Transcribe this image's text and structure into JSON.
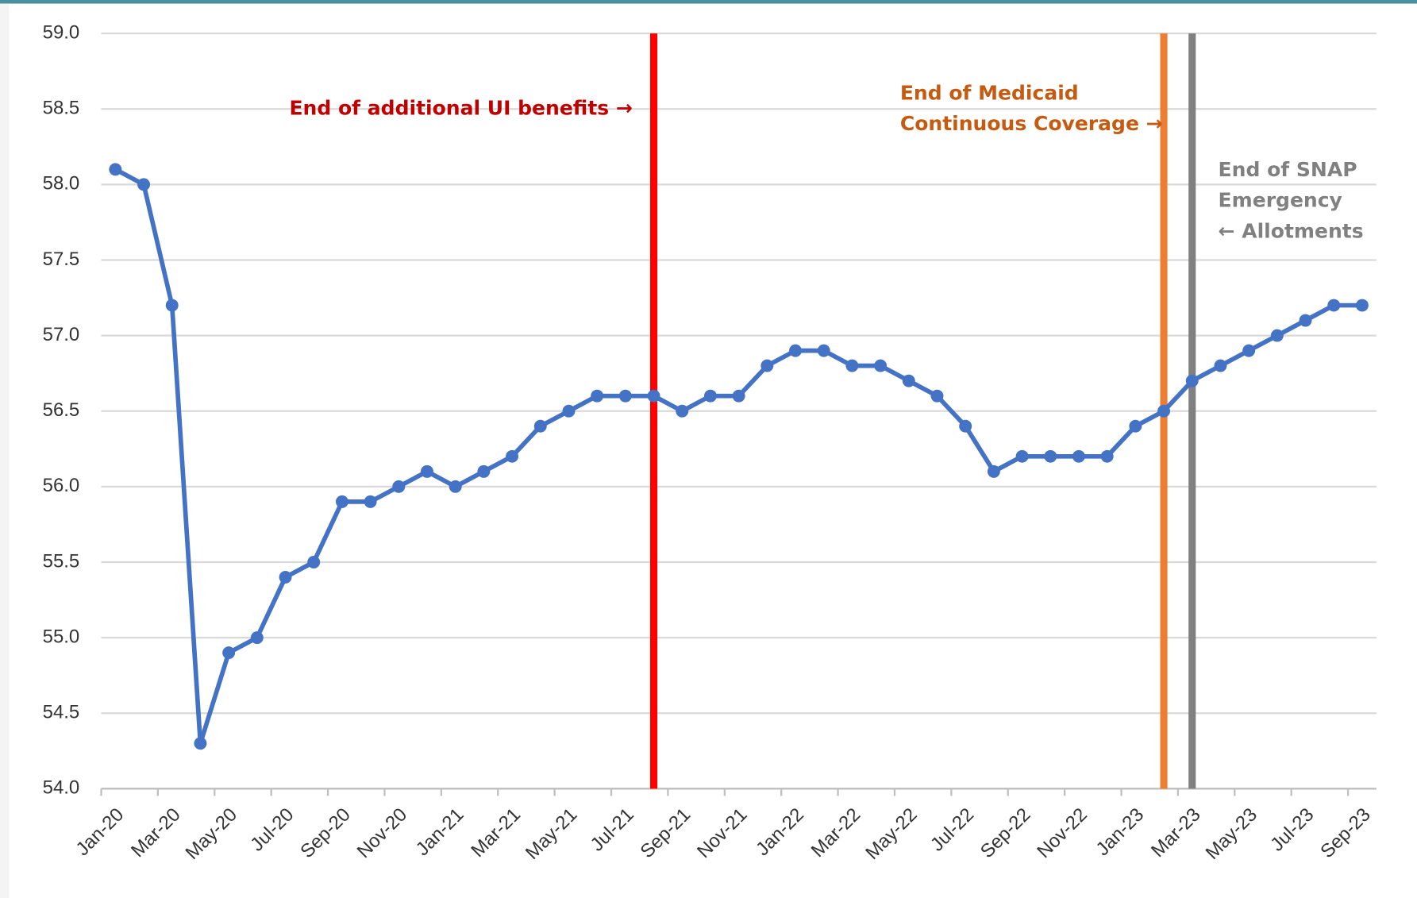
{
  "chart_data": {
    "type": "line",
    "categories": [
      "Jan-20",
      null,
      "Mar-20",
      null,
      "May-20",
      null,
      "Jul-20",
      null,
      "Sep-20",
      null,
      "Nov-20",
      null,
      "Jan-21",
      null,
      "Mar-21",
      null,
      "May-21",
      null,
      "Jul-21",
      null,
      "Sep-21",
      null,
      "Nov-21",
      null,
      "Jan-22",
      null,
      "Mar-22",
      null,
      "May-22",
      null,
      "Jul-22",
      null,
      "Sep-22",
      null,
      "Nov-22",
      null,
      "Jan-23",
      null,
      "Mar-23",
      null,
      "May-23",
      null,
      "Jul-23",
      null,
      "Sep-23"
    ],
    "series": [
      {
        "color": "#4472c4",
        "values": [
          58.1,
          58.0,
          57.2,
          54.3,
          54.9,
          55.0,
          55.4,
          55.5,
          55.9,
          55.9,
          56.0,
          56.1,
          56.0,
          56.1,
          56.2,
          56.4,
          56.5,
          56.6,
          56.6,
          56.6,
          56.5,
          56.6,
          56.6,
          56.8,
          56.9,
          56.9,
          56.8,
          56.8,
          56.7,
          56.6,
          56.4,
          56.1,
          56.2,
          56.2,
          56.2,
          56.2,
          56.4,
          56.5,
          56.7,
          56.8,
          56.9,
          57.0,
          57.1,
          57.2,
          57.2
        ]
      }
    ],
    "ylim": [
      54,
      59
    ],
    "yticks": [
      {
        "value": 54,
        "label": "54.0"
      },
      {
        "value": 54.5,
        "label": "54.5"
      },
      {
        "value": 55,
        "label": "55.0"
      },
      {
        "value": 55.5,
        "label": "55.5"
      },
      {
        "value": 56,
        "label": "56.0"
      },
      {
        "value": 56.5,
        "label": "56.5"
      },
      {
        "value": 57,
        "label": "57.0"
      },
      {
        "value": 57.5,
        "label": "57.5"
      },
      {
        "value": 58,
        "label": "58.0"
      },
      {
        "value": 58.5,
        "label": "58.5"
      },
      {
        "value": 59,
        "label": "59.0"
      }
    ],
    "grid": true,
    "events": [
      {
        "at": 19,
        "color": "#ff0000",
        "text_color": "#c00000",
        "lines": [
          "End of additional UI benefits →"
        ]
      },
      {
        "at": 37,
        "color": "#ed7d31",
        "text_color": "#c55a11",
        "lines": [
          "End of Medicaid",
          "Continuous Coverage →"
        ]
      },
      {
        "at": 38,
        "color": "#808080",
        "text_color": "#808080",
        "lines": [
          "End of SNAP",
          "Emergency",
          "←  Allotments"
        ]
      }
    ]
  }
}
